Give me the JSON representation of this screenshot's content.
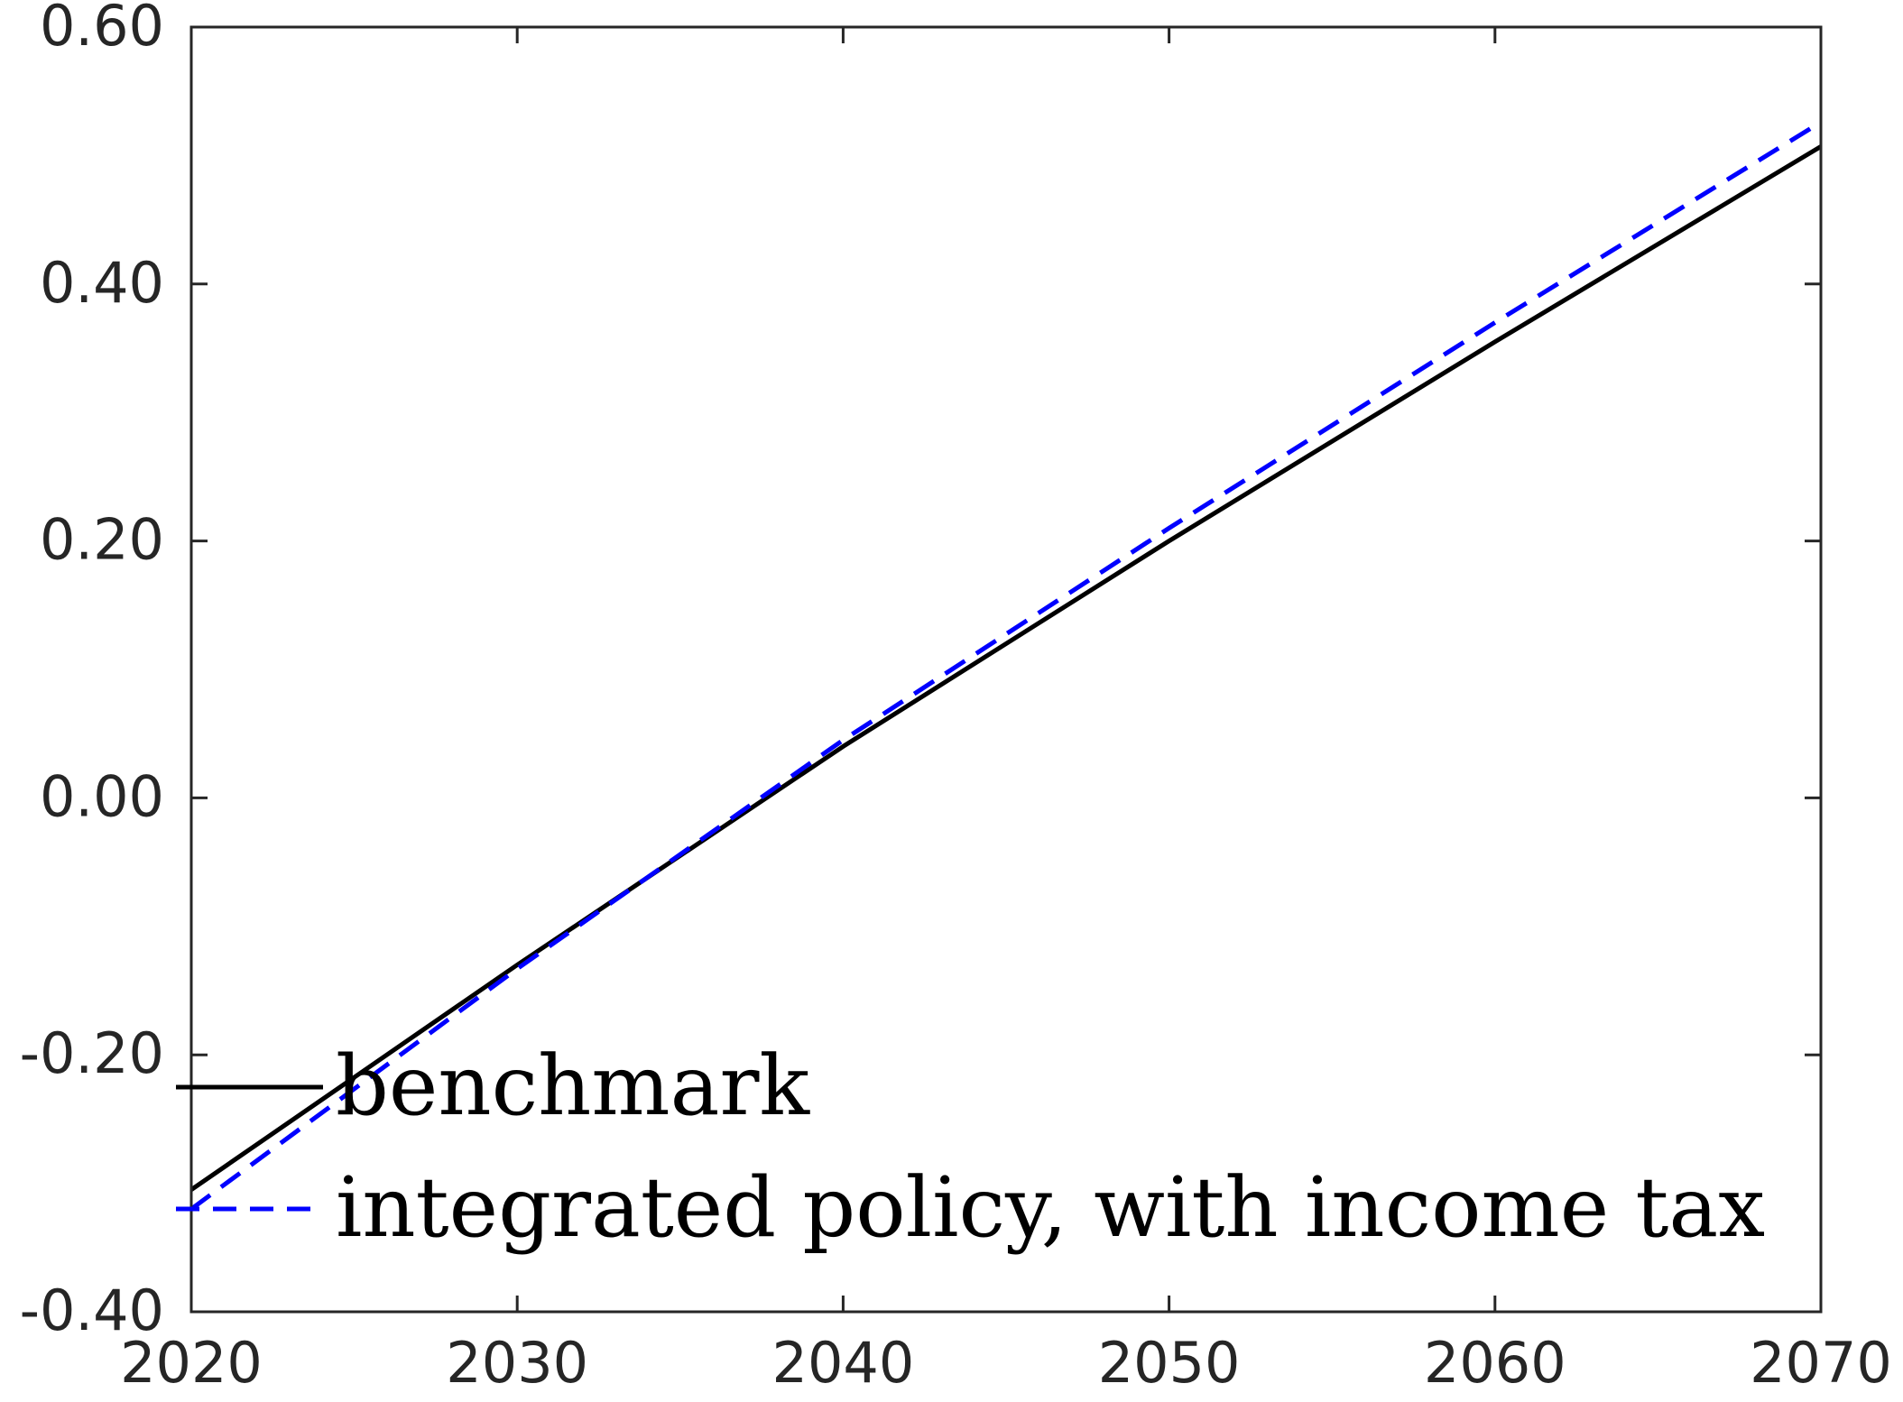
{
  "chart_data": {
    "type": "line",
    "title": "",
    "xlabel": "",
    "ylabel": "",
    "xlim": [
      2020,
      2070
    ],
    "ylim": [
      -0.4,
      0.6
    ],
    "xticks": [
      2020,
      2030,
      2040,
      2050,
      2060,
      2070
    ],
    "xtick_labels": [
      "2020",
      "2030",
      "2040",
      "2050",
      "2060",
      "2070"
    ],
    "yticks": [
      -0.4,
      -0.2,
      0.0,
      0.2,
      0.4,
      0.6
    ],
    "ytick_labels": [
      "-0.40",
      "-0.20",
      "0.00",
      "0.20",
      "0.40",
      "0.60"
    ],
    "grid": false,
    "legend_position": "bottom-left",
    "series": [
      {
        "name": "benchmark",
        "color": "#000000",
        "style": "solid",
        "x": [
          2020,
          2030,
          2040,
          2050,
          2060,
          2070
        ],
        "y": [
          -0.305,
          -0.13,
          0.04,
          0.2,
          0.355,
          0.507
        ]
      },
      {
        "name": "integrated policy, with income tax",
        "color": "#0000ff",
        "style": "dashed",
        "x": [
          2020,
          2030,
          2040,
          2050,
          2060,
          2070
        ],
        "y": [
          -0.32,
          -0.133,
          0.045,
          0.21,
          0.37,
          0.526
        ]
      }
    ]
  }
}
